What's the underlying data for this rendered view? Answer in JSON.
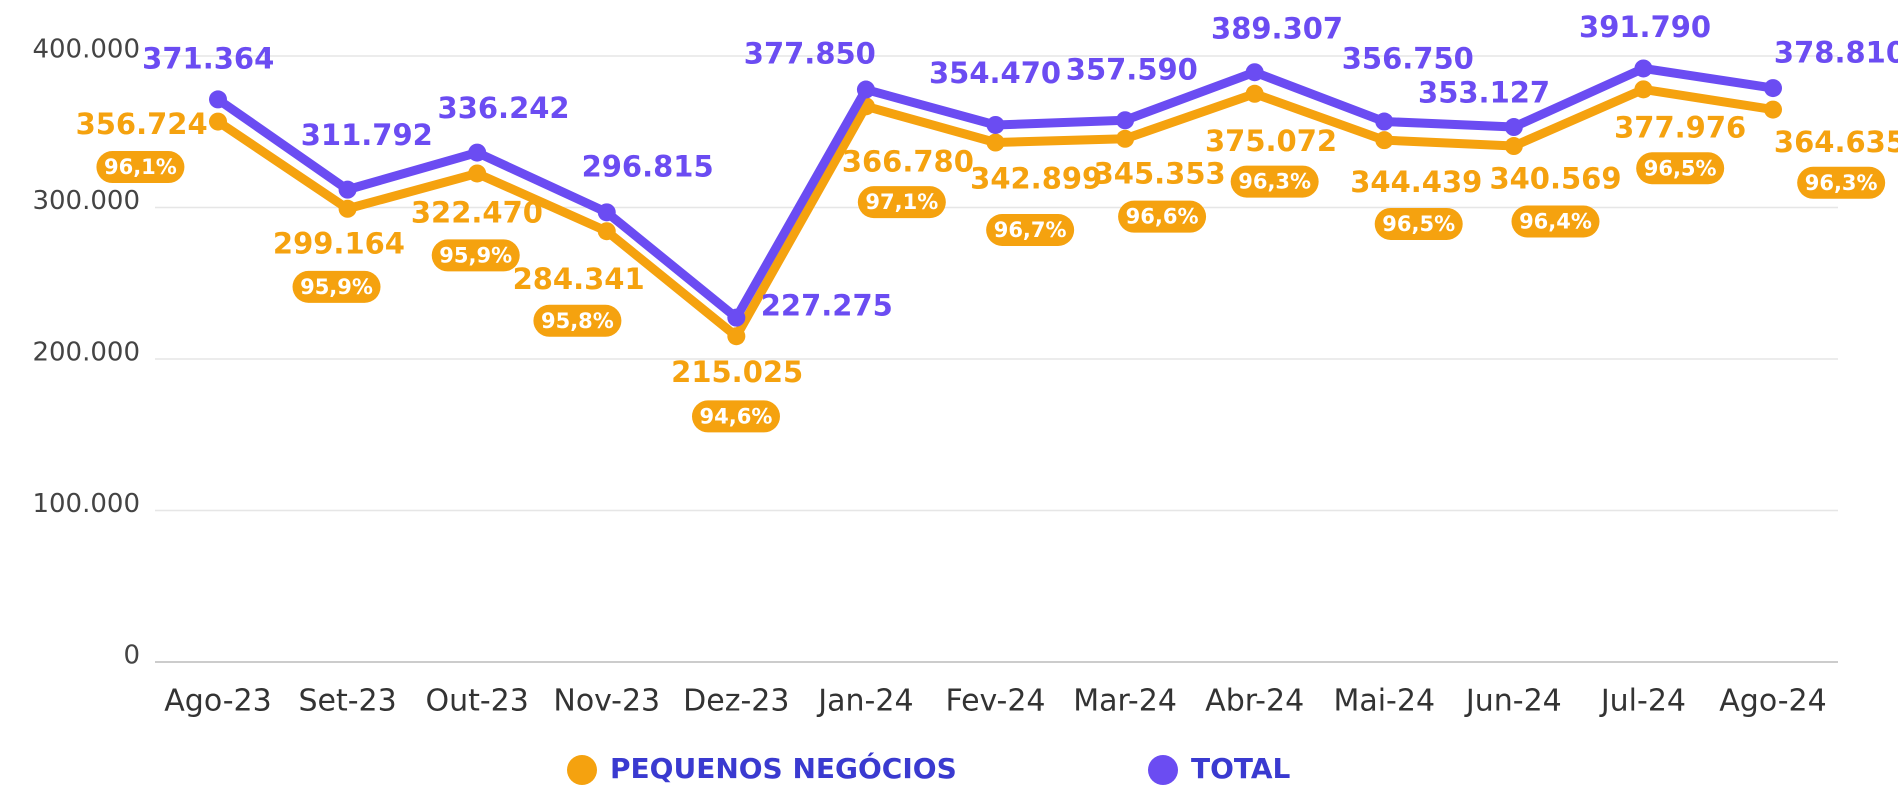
{
  "chart_data": {
    "type": "line",
    "categories": [
      "Ago-23",
      "Set-23",
      "Out-23",
      "Nov-23",
      "Dez-23",
      "Jan-24",
      "Fev-24",
      "Mar-24",
      "Abr-24",
      "Mai-24",
      "Jun-24",
      "Jul-24",
      "Ago-24"
    ],
    "series": [
      {
        "name": "PEQUENOS NEGÓCIOS",
        "color": "#f5a20f",
        "values": [
          356724,
          299164,
          322470,
          284341,
          215025,
          366780,
          342899,
          345353,
          375072,
          344439,
          340569,
          377976,
          364635
        ],
        "value_labels": [
          "356.724",
          "299.164",
          "322.470",
          "284.341",
          "215.025",
          "366.780",
          "342.899",
          "345.353",
          "375.072",
          "344.439",
          "340.569",
          "377.976",
          "364.635"
        ],
        "share_labels": [
          "96,1%",
          "95,9%",
          "95,9%",
          "95,8%",
          "94,6%",
          "97,1%",
          "96,7%",
          "96,6%",
          "96,3%",
          "96,5%",
          "96,4%",
          "96,5%",
          "96,3%"
        ]
      },
      {
        "name": "TOTAL",
        "color": "#6b4cf2",
        "values": [
          371364,
          311792,
          336242,
          296815,
          227275,
          377850,
          354470,
          357590,
          389307,
          356750,
          353127,
          391790,
          378810
        ],
        "value_labels": [
          "371.364",
          "311.792",
          "336.242",
          "296.815",
          "227.275",
          "377.850",
          "354.470",
          "357.590",
          "389.307",
          "356.750",
          "353.127",
          "391.790",
          "378.810"
        ]
      }
    ],
    "ylim": [
      0,
      400000
    ],
    "yticks": [
      0,
      {
        "value": 100000,
        "label": "100.000"
      },
      {
        "value": 200000,
        "label": "200.000"
      },
      {
        "value": 300000,
        "label": "300.000"
      },
      {
        "value": 400000,
        "label": "400.000"
      }
    ],
    "grid": true
  }
}
